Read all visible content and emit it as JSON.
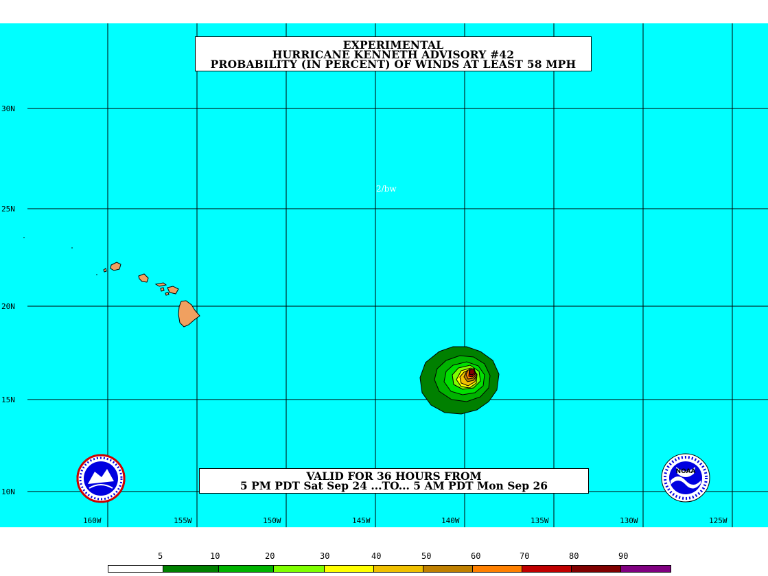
{
  "title": {
    "line1": "EXPERIMENTAL",
    "line2": "HURRICANE KENNETH ADVISORY #42",
    "line3": "PROBABILITY (IN PERCENT) OF WINDS AT LEAST 58 MPH"
  },
  "valid": {
    "line1": "VALID FOR 36 HOURS FROM",
    "line2": "5 PM PDT Sat Sep 24 ...TO... 5 AM PDT Mon Sep 26"
  },
  "forecaster_initials": "2/bw",
  "lat_labels": [
    "30N",
    "25N",
    "20N",
    "15N",
    "10N"
  ],
  "lon_labels": [
    "160W",
    "155W",
    "150W",
    "145W",
    "140W",
    "135W",
    "130W",
    "125W"
  ],
  "legend": {
    "ticks": [
      "5",
      "10",
      "20",
      "30",
      "40",
      "50",
      "60",
      "70",
      "80",
      "90"
    ],
    "colors": [
      "#ffffff",
      "#008000",
      "#00b300",
      "#00e000",
      "#80ff00",
      "#ffff00",
      "#f0c000",
      "#c08000",
      "#ff8000",
      "#c00000",
      "#800000",
      "#800080"
    ]
  },
  "colors": {
    "ocean": "#00ffff",
    "land": "#f0a060",
    "grid": "#000000"
  },
  "icons": {
    "left_logo": "nws-logo-icon",
    "right_logo": "noaa-logo-icon"
  }
}
